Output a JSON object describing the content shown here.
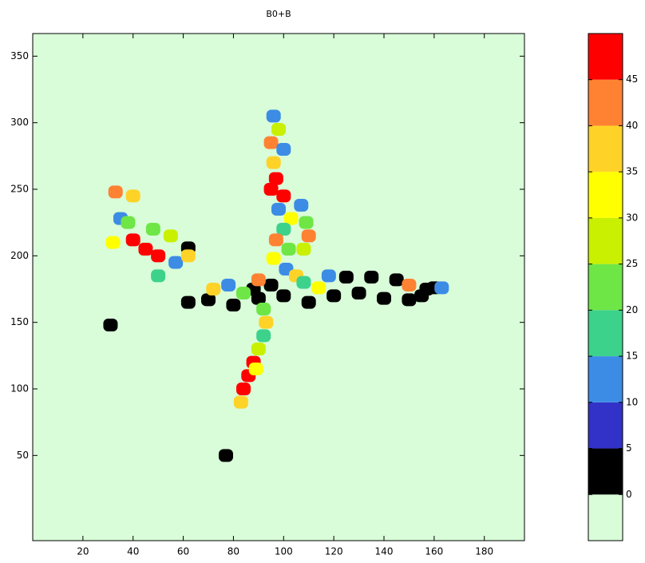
{
  "chart_data": {
    "type": "heatmap",
    "title": "B0+B",
    "xlim": [
      0,
      196
    ],
    "ylim": [
      -14,
      367
    ],
    "xticks": [
      20,
      40,
      60,
      80,
      100,
      120,
      140,
      160,
      180
    ],
    "yticks": [
      50,
      100,
      150,
      200,
      250,
      300,
      350
    ],
    "colorbar": {
      "clim": [
        -5,
        50
      ],
      "ticks": [
        0,
        5,
        10,
        15,
        20,
        25,
        30,
        35,
        40,
        45
      ],
      "colors": [
        "#d9fcd9",
        "#000000",
        "#3232c8",
        "#3c8ce6",
        "#3cd28c",
        "#6ee646",
        "#c8f000",
        "#ffff00",
        "#ffd228",
        "#ff8232",
        "#ff0000"
      ]
    },
    "blobs": [
      {
        "x": 96,
        "y": 305,
        "value": 10
      },
      {
        "x": 98,
        "y": 295,
        "value": 25
      },
      {
        "x": 95,
        "y": 285,
        "value": 40
      },
      {
        "x": 100,
        "y": 280,
        "value": 10
      },
      {
        "x": 96,
        "y": 270,
        "value": 35
      },
      {
        "x": 97,
        "y": 258,
        "value": 47
      },
      {
        "x": 95,
        "y": 250,
        "value": 47
      },
      {
        "x": 100,
        "y": 245,
        "value": 47
      },
      {
        "x": 98,
        "y": 235,
        "value": 10
      },
      {
        "x": 103,
        "y": 228,
        "value": 30
      },
      {
        "x": 100,
        "y": 220,
        "value": 15
      },
      {
        "x": 97,
        "y": 212,
        "value": 40
      },
      {
        "x": 102,
        "y": 205,
        "value": 20
      },
      {
        "x": 96,
        "y": 198,
        "value": 30
      },
      {
        "x": 101,
        "y": 190,
        "value": 10
      },
      {
        "x": 105,
        "y": 185,
        "value": 35
      },
      {
        "x": 108,
        "y": 205,
        "value": 25
      },
      {
        "x": 110,
        "y": 215,
        "value": 40
      },
      {
        "x": 107,
        "y": 238,
        "value": 10
      },
      {
        "x": 109,
        "y": 225,
        "value": 20
      },
      {
        "x": 62,
        "y": 165,
        "value": 2
      },
      {
        "x": 70,
        "y": 167,
        "value": 2
      },
      {
        "x": 80,
        "y": 163,
        "value": 2
      },
      {
        "x": 90,
        "y": 168,
        "value": 2
      },
      {
        "x": 100,
        "y": 170,
        "value": 2
      },
      {
        "x": 110,
        "y": 165,
        "value": 2
      },
      {
        "x": 120,
        "y": 170,
        "value": 2
      },
      {
        "x": 130,
        "y": 172,
        "value": 2
      },
      {
        "x": 140,
        "y": 168,
        "value": 2
      },
      {
        "x": 150,
        "y": 167,
        "value": 2
      },
      {
        "x": 155,
        "y": 170,
        "value": 2
      },
      {
        "x": 157,
        "y": 175,
        "value": 2
      },
      {
        "x": 125,
        "y": 184,
        "value": 2
      },
      {
        "x": 135,
        "y": 184,
        "value": 2
      },
      {
        "x": 145,
        "y": 182,
        "value": 2
      },
      {
        "x": 160,
        "y": 176,
        "value": 2
      },
      {
        "x": 31,
        "y": 148,
        "value": 2
      },
      {
        "x": 77,
        "y": 50,
        "value": 2
      },
      {
        "x": 62,
        "y": 206,
        "value": 2
      },
      {
        "x": 88,
        "y": 175,
        "value": 2
      },
      {
        "x": 95,
        "y": 178,
        "value": 2
      },
      {
        "x": 72,
        "y": 175,
        "value": 35
      },
      {
        "x": 78,
        "y": 178,
        "value": 10
      },
      {
        "x": 84,
        "y": 172,
        "value": 20
      },
      {
        "x": 90,
        "y": 182,
        "value": 40
      },
      {
        "x": 108,
        "y": 180,
        "value": 15
      },
      {
        "x": 114,
        "y": 176,
        "value": 30
      },
      {
        "x": 118,
        "y": 185,
        "value": 10
      },
      {
        "x": 150,
        "y": 178,
        "value": 40
      },
      {
        "x": 163,
        "y": 176,
        "value": 10
      },
      {
        "x": 93,
        "y": 150,
        "value": 35
      },
      {
        "x": 92,
        "y": 140,
        "value": 15
      },
      {
        "x": 90,
        "y": 130,
        "value": 25
      },
      {
        "x": 88,
        "y": 120,
        "value": 47
      },
      {
        "x": 86,
        "y": 110,
        "value": 47
      },
      {
        "x": 84,
        "y": 100,
        "value": 45
      },
      {
        "x": 89,
        "y": 115,
        "value": 30
      },
      {
        "x": 83,
        "y": 90,
        "value": 35
      },
      {
        "x": 92,
        "y": 160,
        "value": 20
      },
      {
        "x": 33,
        "y": 248,
        "value": 40
      },
      {
        "x": 40,
        "y": 245,
        "value": 35
      },
      {
        "x": 35,
        "y": 228,
        "value": 10
      },
      {
        "x": 32,
        "y": 210,
        "value": 30
      },
      {
        "x": 40,
        "y": 212,
        "value": 45
      },
      {
        "x": 45,
        "y": 205,
        "value": 47
      },
      {
        "x": 50,
        "y": 200,
        "value": 47
      },
      {
        "x": 55,
        "y": 215,
        "value": 25
      },
      {
        "x": 57,
        "y": 195,
        "value": 10
      },
      {
        "x": 48,
        "y": 220,
        "value": 20
      },
      {
        "x": 38,
        "y": 225,
        "value": 20
      },
      {
        "x": 62,
        "y": 200,
        "value": 35
      },
      {
        "x": 50,
        "y": 185,
        "value": 15
      }
    ]
  }
}
